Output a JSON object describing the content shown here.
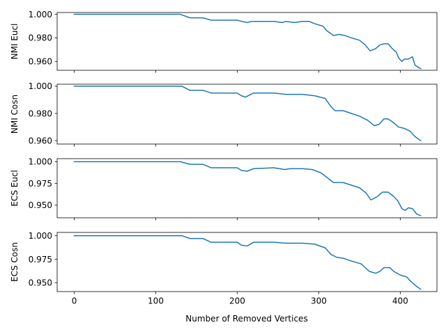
{
  "chart_data": {
    "type": "line",
    "xlabel": "Number of Removed Vertices",
    "x_ticks": [
      0,
      100,
      200,
      300,
      400
    ],
    "xlim": [
      -21,
      445
    ],
    "line_color": "#1f77b4",
    "panels": [
      {
        "ylabel": "NMI Eucl",
        "ylim": [
          0.9525,
          1.0015
        ],
        "y_ticks": [
          0.96,
          0.98,
          1.0
        ],
        "y_tick_labels": [
          "0.960",
          "0.980",
          "1.000"
        ],
        "points": [
          [
            0,
            1.0
          ],
          [
            130,
            1.0
          ],
          [
            142,
            0.997
          ],
          [
            158,
            0.997
          ],
          [
            168,
            0.995
          ],
          [
            200,
            0.995
          ],
          [
            205,
            0.994
          ],
          [
            212,
            0.993
          ],
          [
            218,
            0.994
          ],
          [
            225,
            0.994
          ],
          [
            245,
            0.994
          ],
          [
            255,
            0.993
          ],
          [
            260,
            0.994
          ],
          [
            270,
            0.993
          ],
          [
            280,
            0.994
          ],
          [
            288,
            0.994
          ],
          [
            295,
            0.992
          ],
          [
            305,
            0.99
          ],
          [
            310,
            0.986
          ],
          [
            318,
            0.982
          ],
          [
            325,
            0.983
          ],
          [
            332,
            0.982
          ],
          [
            340,
            0.98
          ],
          [
            350,
            0.978
          ],
          [
            357,
            0.974
          ],
          [
            363,
            0.969
          ],
          [
            370,
            0.971
          ],
          [
            375,
            0.974
          ],
          [
            380,
            0.975
          ],
          [
            385,
            0.975
          ],
          [
            390,
            0.971
          ],
          [
            395,
            0.968
          ],
          [
            398,
            0.963
          ],
          [
            402,
            0.96
          ],
          [
            405,
            0.962
          ],
          [
            410,
            0.962
          ],
          [
            415,
            0.964
          ],
          [
            418,
            0.957
          ],
          [
            422,
            0.955
          ],
          [
            425,
            0.954
          ]
        ]
      },
      {
        "ylabel": "NMI Cosn",
        "ylim": [
          0.9575,
          1.0015
        ],
        "y_ticks": [
          0.96,
          0.98,
          1.0
        ],
        "y_tick_labels": [
          "0.960",
          "0.980",
          "1.000"
        ],
        "points": [
          [
            0,
            1.0
          ],
          [
            132,
            1.0
          ],
          [
            142,
            0.997
          ],
          [
            158,
            0.997
          ],
          [
            168,
            0.995
          ],
          [
            200,
            0.995
          ],
          [
            205,
            0.993
          ],
          [
            210,
            0.992
          ],
          [
            220,
            0.995
          ],
          [
            245,
            0.995
          ],
          [
            260,
            0.994
          ],
          [
            280,
            0.994
          ],
          [
            295,
            0.993
          ],
          [
            308,
            0.991
          ],
          [
            315,
            0.985
          ],
          [
            320,
            0.982
          ],
          [
            330,
            0.982
          ],
          [
            340,
            0.98
          ],
          [
            350,
            0.978
          ],
          [
            360,
            0.975
          ],
          [
            368,
            0.971
          ],
          [
            374,
            0.972
          ],
          [
            380,
            0.976
          ],
          [
            385,
            0.976
          ],
          [
            390,
            0.974
          ],
          [
            398,
            0.97
          ],
          [
            405,
            0.969
          ],
          [
            412,
            0.967
          ],
          [
            418,
            0.963
          ],
          [
            425,
            0.96
          ]
        ]
      },
      {
        "ylabel": "ECS Eucl",
        "ylim": [
          0.9355,
          1.0035
        ],
        "y_ticks": [
          0.95,
          0.975,
          1.0
        ],
        "y_tick_labels": [
          "0.950",
          "0.975",
          "1.000"
        ],
        "points": [
          [
            0,
            1.0
          ],
          [
            130,
            1.0
          ],
          [
            142,
            0.997
          ],
          [
            158,
            0.997
          ],
          [
            168,
            0.993
          ],
          [
            200,
            0.993
          ],
          [
            205,
            0.99
          ],
          [
            212,
            0.989
          ],
          [
            220,
            0.992
          ],
          [
            245,
            0.993
          ],
          [
            258,
            0.991
          ],
          [
            265,
            0.992
          ],
          [
            280,
            0.992
          ],
          [
            292,
            0.991
          ],
          [
            303,
            0.987
          ],
          [
            310,
            0.982
          ],
          [
            318,
            0.976
          ],
          [
            330,
            0.976
          ],
          [
            340,
            0.973
          ],
          [
            350,
            0.97
          ],
          [
            358,
            0.964
          ],
          [
            364,
            0.956
          ],
          [
            372,
            0.96
          ],
          [
            378,
            0.965
          ],
          [
            385,
            0.965
          ],
          [
            392,
            0.96
          ],
          [
            397,
            0.955
          ],
          [
            402,
            0.946
          ],
          [
            406,
            0.944
          ],
          [
            410,
            0.947
          ],
          [
            415,
            0.946
          ],
          [
            420,
            0.94
          ],
          [
            425,
            0.938
          ]
        ]
      },
      {
        "ylabel": "ECS Cosn",
        "ylim": [
          0.9405,
          1.0035
        ],
        "y_ticks": [
          0.95,
          0.975,
          1.0
        ],
        "y_tick_labels": [
          "0.950",
          "0.975",
          "1.000"
        ],
        "points": [
          [
            0,
            1.0
          ],
          [
            132,
            1.0
          ],
          [
            142,
            0.997
          ],
          [
            158,
            0.997
          ],
          [
            168,
            0.993
          ],
          [
            200,
            0.993
          ],
          [
            205,
            0.99
          ],
          [
            212,
            0.989
          ],
          [
            220,
            0.993
          ],
          [
            245,
            0.993
          ],
          [
            260,
            0.992
          ],
          [
            280,
            0.992
          ],
          [
            295,
            0.991
          ],
          [
            308,
            0.987
          ],
          [
            315,
            0.98
          ],
          [
            322,
            0.977
          ],
          [
            330,
            0.976
          ],
          [
            340,
            0.973
          ],
          [
            352,
            0.97
          ],
          [
            362,
            0.962
          ],
          [
            370,
            0.96
          ],
          [
            375,
            0.962
          ],
          [
            380,
            0.966
          ],
          [
            387,
            0.966
          ],
          [
            392,
            0.962
          ],
          [
            400,
            0.958
          ],
          [
            408,
            0.956
          ],
          [
            412,
            0.952
          ],
          [
            420,
            0.946
          ],
          [
            425,
            0.943
          ]
        ]
      }
    ]
  }
}
